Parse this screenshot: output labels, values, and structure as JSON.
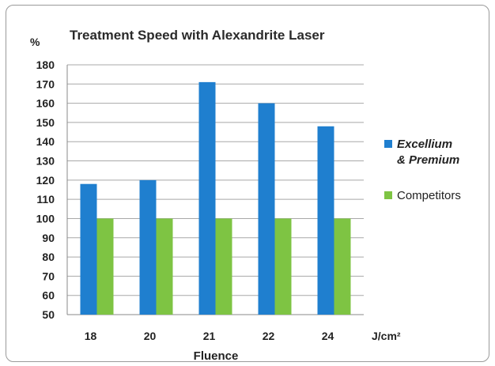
{
  "chart_data": {
    "type": "bar",
    "title": "Treatment Speed with Alexandrite Laser",
    "ylabel": "%",
    "xlabel": "Fluence",
    "x_unit": "J/cm²",
    "categories": [
      "18",
      "20",
      "21",
      "22",
      "24"
    ],
    "ylim": [
      50,
      180
    ],
    "yticks": [
      50,
      60,
      70,
      80,
      90,
      100,
      110,
      120,
      130,
      140,
      150,
      160,
      170,
      180
    ],
    "grid": true,
    "legend_position": "right",
    "series": [
      {
        "name": "Excellium & Premium",
        "legend_lines": [
          "Excellium",
          "& Premium"
        ],
        "color": "#1f7fcf",
        "values": [
          118,
          120,
          171,
          160,
          148
        ]
      },
      {
        "name": "Competitors",
        "legend_lines": [
          "Competitors"
        ],
        "color": "#7ec443",
        "values": [
          100,
          100,
          100,
          100,
          100
        ]
      }
    ]
  }
}
